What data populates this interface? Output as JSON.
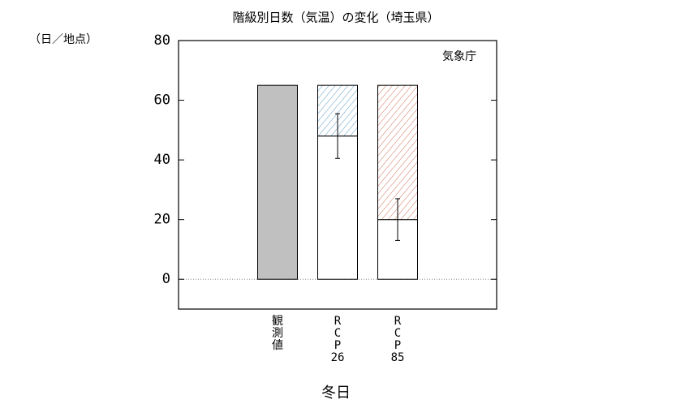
{
  "chart_data": {
    "type": "bar",
    "title": "階級別日数（気温）の変化（埼玉県）",
    "y_label": "（日／地点）",
    "source": "気象庁",
    "x_label": "冬日",
    "categories": [
      "観測値",
      "RCP26",
      "RCP85"
    ],
    "series": [
      {
        "color": "#c0c0c0",
        "values": [
          65,
          null,
          null
        ]
      },
      {
        "color": "#ffffff",
        "values": [
          null,
          48,
          20
        ],
        "errors": [
          null,
          7.5,
          7
        ]
      },
      {
        "colors": [
          null,
          "#5a9cc4",
          "#d0705c"
        ],
        "hatch": true,
        "values": [
          null,
          17,
          45
        ]
      }
    ],
    "ylim": [
      -10,
      80
    ],
    "yticks": [
      0,
      20,
      40,
      60,
      80
    ],
    "zero_line": true
  }
}
